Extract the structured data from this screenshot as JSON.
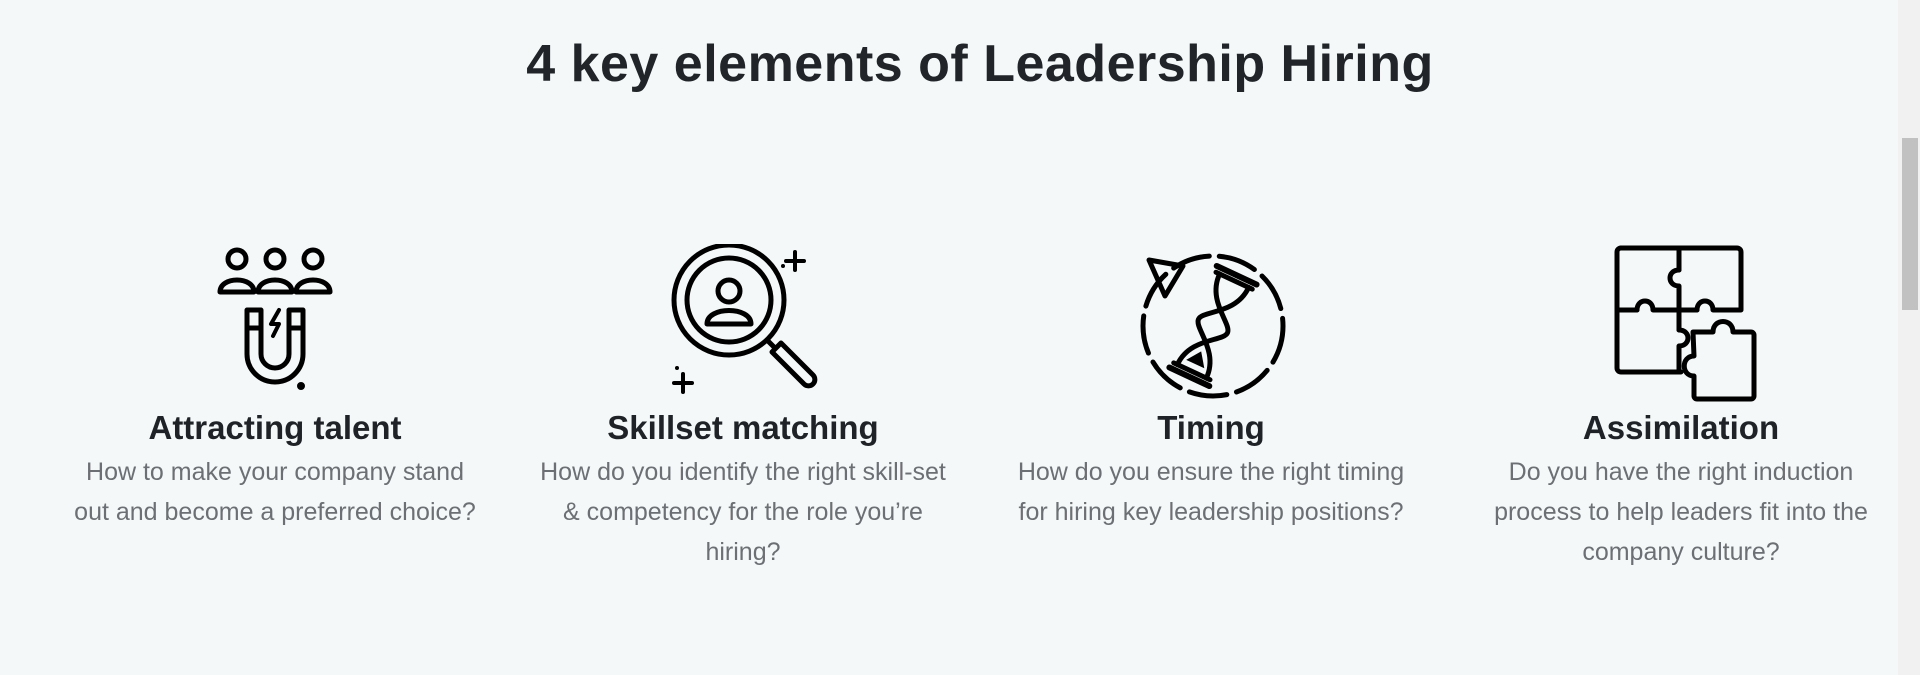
{
  "section": {
    "title": "4 key elements of Leadership Hiring"
  },
  "features": [
    {
      "icon": "magnet-people-icon",
      "heading": "Attracting talent",
      "description": "How to make your company stand out and become a preferred choice?"
    },
    {
      "icon": "magnifier-person-icon",
      "heading": "Skillset matching",
      "description": "How do you identify the right skill-set & competency for the role you’re hiring?"
    },
    {
      "icon": "hourglass-cycle-icon",
      "heading": "Timing",
      "description": "How do you ensure the right timing for hiring key leadership positions?"
    },
    {
      "icon": "puzzle-pieces-icon",
      "heading": "Assimilation",
      "description": "Do you have the right induction process to help leaders fit into the company culture?"
    }
  ],
  "colors": {
    "background": "#f5f8f9",
    "heading": "#212428",
    "body_text": "#6c6f73",
    "icon_stroke": "#000000"
  }
}
